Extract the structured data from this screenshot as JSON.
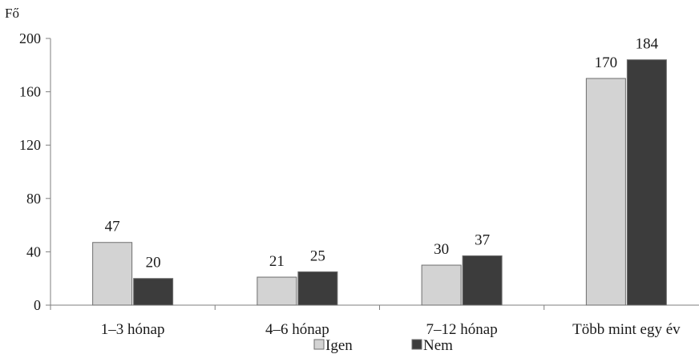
{
  "chart_data": {
    "type": "bar",
    "title": "",
    "xlabel": "",
    "ylabel": "Fő",
    "ylim": [
      0,
      200
    ],
    "yticks": [
      0,
      40,
      80,
      120,
      160,
      200
    ],
    "grid": false,
    "legend_position": "bottom-center",
    "categories": [
      "1–3 hónap",
      "4–6 hónap",
      "7–12 hónap",
      "Több mint egy év"
    ],
    "series": [
      {
        "name": "Igen",
        "values": [
          47,
          21,
          30,
          170
        ],
        "color": "#d3d3d3"
      },
      {
        "name": "Nem",
        "values": [
          20,
          25,
          37,
          184
        ],
        "color": "#3c3c3c"
      }
    ]
  }
}
